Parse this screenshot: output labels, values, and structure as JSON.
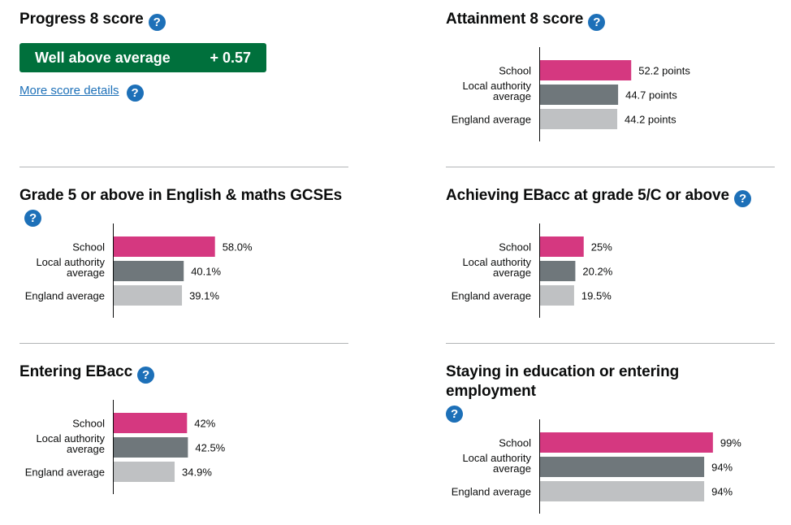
{
  "progress8": {
    "title": "Progress 8 score",
    "help_icon": "question-mark-icon",
    "band": "Well above average",
    "score": "+ 0.57",
    "band_color": "#00703c",
    "more_link": "More score details"
  },
  "colors": {
    "school": "#d53880",
    "local": "#6f777b",
    "england": "#bfc1c3",
    "help": "#1d70b8"
  },
  "chart_data": [
    {
      "type": "bar",
      "title": "Attainment 8 score",
      "categories": [
        "School",
        "Local authority average",
        "England average"
      ],
      "values": [
        52.2,
        44.7,
        44.2
      ],
      "value_labels": [
        "52.2 points",
        "44.7 points",
        "44.2 points"
      ],
      "xlim": [
        0,
        100
      ]
    },
    {
      "type": "bar",
      "title": "Grade 5 or above in English & maths GCSEs",
      "categories": [
        "School",
        "Local authority average",
        "England average"
      ],
      "values": [
        58.0,
        40.1,
        39.1
      ],
      "value_labels": [
        "58.0%",
        "40.1%",
        "39.1%"
      ],
      "xlim": [
        0,
        100
      ]
    },
    {
      "type": "bar",
      "title": "Achieving EBacc at grade 5/C or above",
      "categories": [
        "School",
        "Local authority average",
        "England average"
      ],
      "values": [
        25,
        20.2,
        19.5
      ],
      "value_labels": [
        "25%",
        "20.2%",
        "19.5%"
      ],
      "xlim": [
        0,
        100
      ]
    },
    {
      "type": "bar",
      "title": "Entering EBacc",
      "categories": [
        "School",
        "Local authority average",
        "England average"
      ],
      "values": [
        42,
        42.5,
        34.9
      ],
      "value_labels": [
        "42%",
        "42.5%",
        "34.9%"
      ],
      "xlim": [
        0,
        100
      ]
    },
    {
      "type": "bar",
      "title": "Staying in education or entering employment",
      "categories": [
        "School",
        "Local authority average",
        "England average"
      ],
      "values": [
        99,
        94,
        94
      ],
      "value_labels": [
        "99%",
        "94%",
        "94%"
      ],
      "xlim": [
        0,
        100
      ]
    }
  ]
}
